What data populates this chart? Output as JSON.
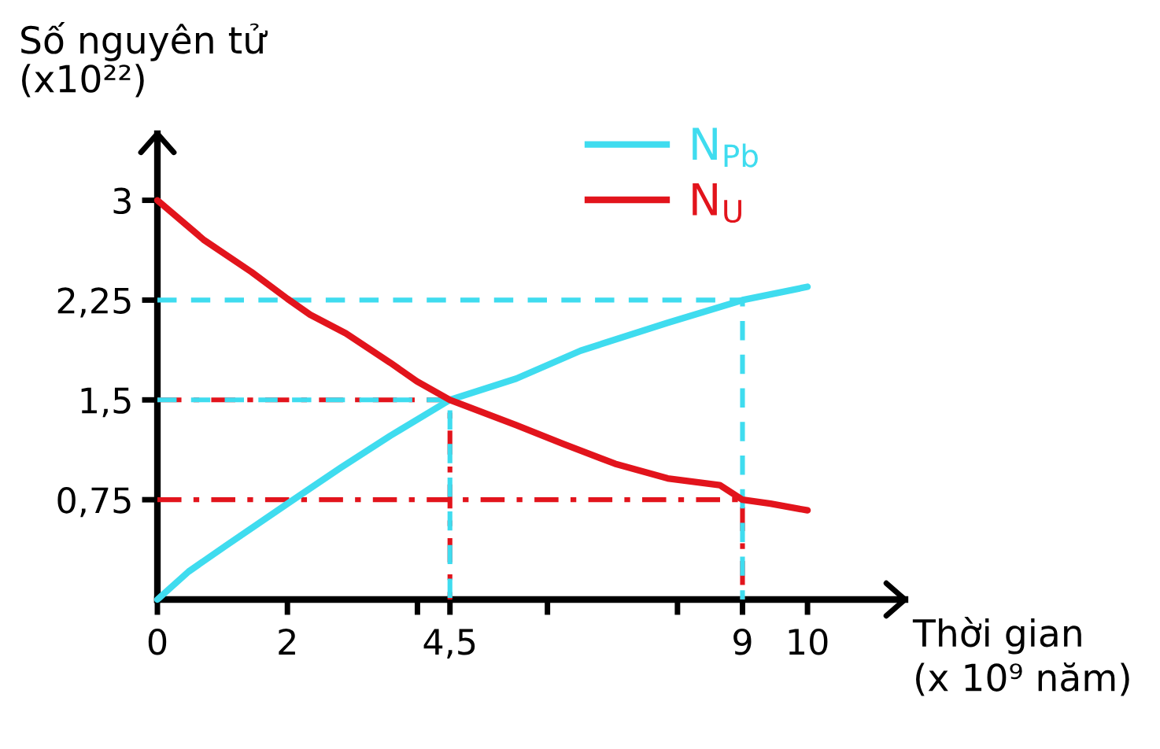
{
  "chart_data": {
    "type": "line",
    "xlabel": "Thời gian\n(x 10⁹ năm)",
    "ylabel": "Số nguyên tử\n(x10²²)",
    "xlim": [
      0,
      11.5
    ],
    "ylim": [
      0,
      3.5
    ],
    "xticks": [
      0,
      2,
      {
        "value": 4,
        "label": null
      },
      {
        "value": 4.5,
        "label": "4,5"
      },
      {
        "value": 6,
        "label": null
      },
      {
        "value": 8,
        "label": null
      },
      9,
      10
    ],
    "yticks": [
      {
        "value": 0.75,
        "label": "0,75"
      },
      {
        "value": 1.5,
        "label": "1,5"
      },
      {
        "value": 2.25,
        "label": "2,25"
      },
      3
    ],
    "legend": "top right",
    "series": [
      {
        "name": "N$_{Pb}$",
        "color": "#3fdcef",
        "line_style": "solid",
        "x": [
          0,
          0.48,
          1.04,
          2,
          2.82,
          3.58,
          4.5,
          5.52,
          6.51,
          7.85,
          9,
          10
        ],
        "values": [
          0,
          0.21,
          0.4,
          0.72,
          0.99,
          1.23,
          1.5,
          1.66,
          1.87,
          2.08,
          2.25,
          2.35
        ]
      },
      {
        "name": "N$_{U}$",
        "color": "#e2141c",
        "line_style": "solid",
        "x": [
          0,
          0.72,
          1.45,
          2,
          2.35,
          2.9,
          3.58,
          3.99,
          4.5,
          5.52,
          6.24,
          7.04,
          7.85,
          8.65,
          9,
          9.43,
          10
        ],
        "values": [
          3,
          2.7,
          2.46,
          2.26,
          2.14,
          2,
          1.78,
          1.64,
          1.5,
          1.31,
          1.17,
          1.02,
          0.91,
          0.86,
          0.75,
          0.72,
          0.67
        ]
      },
      {
        "color": "#e2141c",
        "line_style": "dashdot",
        "x": [
          0,
          9,
          9
        ],
        "values": [
          0.75,
          0.75,
          0
        ]
      },
      {
        "color": "#e2141c",
        "line_style": "dashdot",
        "x": [
          0,
          4.5,
          4.5
        ],
        "values": [
          1.5,
          1.5,
          0
        ]
      },
      {
        "color": "#3fdcef",
        "line_style": "dashed",
        "x": [
          0,
          9,
          9
        ],
        "values": [
          2.25,
          2.25,
          0
        ]
      },
      {
        "color": "#3fdcef",
        "line_style": "dashed",
        "x": [
          0,
          4.5,
          4.5
        ],
        "values": [
          1.5,
          1.5,
          0
        ]
      }
    ]
  }
}
